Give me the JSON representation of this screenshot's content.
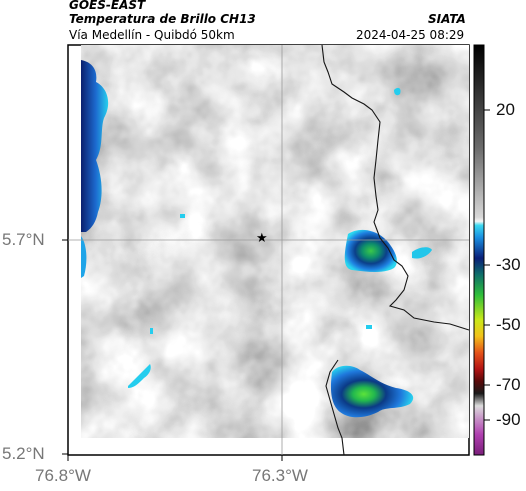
{
  "header": {
    "satellite": "GOES-EAST",
    "product": "Temperatura de Brillo CH13",
    "region": "Vía Medellín - Quibdó 50km",
    "agency": "SIATA",
    "timestamp": "2024-04-25 08:29"
  },
  "axes": {
    "lat_ticks": [
      "5.7°N",
      "5.2°N"
    ],
    "lon_ticks": [
      "76.8°W",
      "76.3°W"
    ]
  },
  "colorbar": {
    "ticks": [
      "20",
      "-30",
      "-50",
      "-70",
      "-90"
    ]
  },
  "marker": {
    "symbol": "★"
  },
  "colors": {
    "frame": "#000000",
    "border": "#111111",
    "grid": "#9a9a9a",
    "cold_cloud_dark": "#0a1a6b",
    "cold_cloud_mid": "#1e6fd0",
    "cold_cloud_edge": "#22d3ee",
    "coldest_core": "#33c94a"
  }
}
